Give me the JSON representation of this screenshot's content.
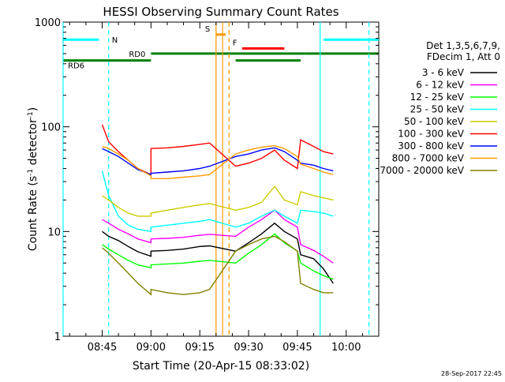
{
  "chart_data": {
    "type": "line",
    "title": "HESSI Observing Summary Count Rates",
    "xlabel": "Start Time (20-Apr-15 08:33:02)",
    "ylabel_main": "Count Rate (s",
    "ylabel_sup1": "-1",
    "ylabel_mid": " detector",
    "ylabel_sup2": "-1",
    "ylabel_end": ")",
    "yscale": "log",
    "ylim": [
      1,
      1000
    ],
    "xlim": [
      "08:33",
      "10:10"
    ],
    "x_ticks": [
      {
        "value": "08:45",
        "label": "08:45"
      },
      {
        "value": "09:00",
        "label": "09:00"
      },
      {
        "value": "09:15",
        "label": "09:15"
      },
      {
        "value": "09:30",
        "label": "09:30"
      },
      {
        "value": "09:45",
        "label": "09:45"
      },
      {
        "value": "10:00",
        "label": "10:00"
      }
    ],
    "y_ticks": [
      {
        "value": 1,
        "label": "1"
      },
      {
        "value": 10,
        "label": "10"
      },
      {
        "value": 100,
        "label": "100"
      },
      {
        "value": 1000,
        "label": "1000"
      }
    ],
    "legend_header": [
      "Det 1,3,5,6,7,9,",
      "FDecim 1, Att 0"
    ],
    "legend_position": "right",
    "series": [
      {
        "name": "3 - 6 keV",
        "color": "#000000",
        "x": [
          "08:45",
          "08:47",
          "08:50",
          "08:53",
          "08:56",
          "09:00",
          "09:00",
          "09:05",
          "09:10",
          "09:15",
          "09:18",
          "09:26",
          "09:30",
          "09:34",
          "09:38",
          "09:41",
          "09:45",
          "09:46",
          "09:50",
          "09:53",
          "09:56"
        ],
        "y": [
          10,
          9,
          8.2,
          7.2,
          6.4,
          5.8,
          6.5,
          6.6,
          6.8,
          7.2,
          7.3,
          6.5,
          7.8,
          9.5,
          12,
          10,
          8.5,
          6.0,
          5.5,
          4.4,
          3.2
        ]
      },
      {
        "name": "6 - 12 keV",
        "color": "#ff00ff",
        "x": [
          "08:45",
          "08:47",
          "08:50",
          "08:53",
          "08:56",
          "09:00",
          "09:00",
          "09:05",
          "09:10",
          "09:15",
          "09:18",
          "09:26",
          "09:30",
          "09:34",
          "09:38",
          "09:41",
          "09:45",
          "09:46",
          "09:50",
          "09:53",
          "09:56"
        ],
        "y": [
          13,
          12,
          10.5,
          9.5,
          8.5,
          7.8,
          8.5,
          8.6,
          8.8,
          9.2,
          9.4,
          9.0,
          11,
          13,
          16,
          13,
          11,
          7.5,
          6.6,
          5.8,
          5.0
        ]
      },
      {
        "name": "12 - 25 keV",
        "color": "#00ff00",
        "x": [
          "08:45",
          "08:47",
          "08:50",
          "08:53",
          "08:56",
          "09:00",
          "09:00",
          "09:05",
          "09:10",
          "09:15",
          "09:18",
          "09:26",
          "09:30",
          "09:34",
          "09:38",
          "09:41",
          "09:45",
          "09:46",
          "09:50",
          "09:53",
          "09:56"
        ],
        "y": [
          7.5,
          6.8,
          6.0,
          5.3,
          4.8,
          4.5,
          4.8,
          4.9,
          5.0,
          5.2,
          5.3,
          5.0,
          6.2,
          7.5,
          9.5,
          7.8,
          6.5,
          5.0,
          4.2,
          3.8,
          3.5
        ]
      },
      {
        "name": "25 - 50 keV",
        "color": "#00ffff",
        "x": [
          "08:45",
          "08:47",
          "08:50",
          "08:53",
          "08:56",
          "09:00",
          "09:00",
          "09:05",
          "09:10",
          "09:15",
          "09:18",
          "09:26",
          "09:30",
          "09:34",
          "09:38",
          "09:41",
          "09:45",
          "09:46",
          "09:50",
          "09:53",
          "09:56"
        ],
        "y": [
          38,
          22,
          14,
          11.5,
          10.5,
          10,
          11,
          11.5,
          12,
          12.5,
          13,
          11,
          12,
          14,
          16,
          14,
          12,
          16,
          15.5,
          15,
          14
        ]
      },
      {
        "name": "50 - 100 keV",
        "color": "#cccc00",
        "x": [
          "08:45",
          "08:47",
          "08:50",
          "08:53",
          "08:56",
          "09:00",
          "09:00",
          "09:05",
          "09:10",
          "09:15",
          "09:18",
          "09:26",
          "09:30",
          "09:34",
          "09:38",
          "09:41",
          "09:45",
          "09:46",
          "09:50",
          "09:53",
          "09:56"
        ],
        "y": [
          22,
          20,
          17,
          15,
          14,
          14,
          15,
          16,
          17,
          18,
          18.5,
          16,
          17,
          19,
          27,
          20,
          18,
          24,
          22,
          21,
          20
        ]
      },
      {
        "name": "100 - 300 keV",
        "color": "#ff0000",
        "x": [
          "08:45",
          "08:47",
          "08:50",
          "08:53",
          "08:56",
          "09:00",
          "09:00",
          "09:05",
          "09:10",
          "09:15",
          "09:18",
          "09:26",
          "09:30",
          "09:34",
          "09:38",
          "09:41",
          "09:45",
          "09:46",
          "09:50",
          "09:53",
          "09:56"
        ],
        "y": [
          105,
          72,
          58,
          48,
          40,
          35,
          62,
          63,
          65,
          68,
          70,
          42,
          45,
          50,
          60,
          48,
          40,
          75,
          65,
          58,
          55
        ]
      },
      {
        "name": "300 - 800 keV",
        "color": "#0000ff",
        "x": [
          "08:45",
          "08:47",
          "08:50",
          "08:53",
          "08:56",
          "09:00",
          "09:00",
          "09:05",
          "09:10",
          "09:15",
          "09:18",
          "09:26",
          "09:30",
          "09:34",
          "09:38",
          "09:41",
          "09:45",
          "09:46",
          "09:50",
          "09:53",
          "09:56"
        ],
        "y": [
          62,
          58,
          52,
          45,
          39,
          35,
          36,
          37,
          38,
          40,
          42,
          52,
          55,
          60,
          63,
          58,
          48,
          45,
          43,
          40,
          38
        ]
      },
      {
        "name": "800 - 7000 keV",
        "color": "#ff9900",
        "x": [
          "08:45",
          "08:47",
          "08:50",
          "08:53",
          "08:56",
          "09:00",
          "09:00",
          "09:05",
          "09:10",
          "09:15",
          "09:18",
          "09:26",
          "09:30",
          "09:34",
          "09:38",
          "09:41",
          "09:45",
          "09:46",
          "09:50",
          "09:53",
          "09:56"
        ],
        "y": [
          65,
          62,
          55,
          48,
          40,
          34,
          32,
          32,
          33,
          34,
          35,
          55,
          60,
          64,
          66,
          62,
          52,
          44,
          40,
          37,
          35
        ]
      },
      {
        "name": "7000 - 20000 keV",
        "color": "#808000",
        "x": [
          "08:45",
          "08:47",
          "08:50",
          "08:53",
          "08:56",
          "09:00",
          "09:00",
          "09:05",
          "09:10",
          "09:15",
          "09:18",
          "09:26",
          "09:30",
          "09:34",
          "09:38",
          "09:41",
          "09:45",
          "09:46",
          "09:50",
          "09:53",
          "09:56"
        ],
        "y": [
          7,
          6.2,
          5.0,
          4.0,
          3.2,
          2.5,
          2.8,
          2.6,
          2.5,
          2.6,
          2.8,
          6.5,
          7.5,
          8.5,
          9,
          8,
          6.5,
          3.2,
          2.8,
          2.6,
          2.6
        ]
      }
    ],
    "flag_bars": [
      {
        "label": "N",
        "color": "#00ffff",
        "y": 680,
        "segments": [
          [
            "08:33",
            "08:44"
          ],
          [
            "09:53",
            "10:10"
          ]
        ]
      },
      {
        "label": "RD0",
        "color": "#008000",
        "y": 500,
        "segments": [
          [
            "09:00",
            "09:47"
          ],
          [
            "09:47",
            "10:10"
          ]
        ]
      },
      {
        "label": "RD6",
        "color": "#008000",
        "y": 430,
        "segments": [
          [
            "08:33",
            "09:00"
          ],
          [
            "09:26",
            "09:46"
          ]
        ]
      },
      {
        "label": "F",
        "color": "#ff0000",
        "y": 560,
        "segments": [
          [
            "09:28",
            "09:41"
          ]
        ]
      },
      {
        "label": "S",
        "color": "#ff9900",
        "y": 760,
        "segments": [
          [
            "09:20",
            "09:23"
          ]
        ]
      }
    ],
    "vertical_lines": [
      {
        "x": "08:33",
        "color": "#00ffff",
        "style": "solid"
      },
      {
        "x": "08:47",
        "color": "#00ffff",
        "style": "dashed"
      },
      {
        "x": "09:20",
        "color": "#ff9900",
        "style": "solid"
      },
      {
        "x": "09:22",
        "color": "#ff9900",
        "style": "solid"
      },
      {
        "x": "09:24",
        "color": "#ff9900",
        "style": "dashed"
      },
      {
        "x": "09:52",
        "color": "#00ffff",
        "style": "solid"
      },
      {
        "x": "10:07",
        "color": "#00ffff",
        "style": "dashed"
      }
    ],
    "data_gaps": [
      [
        "09:19",
        "09:26"
      ]
    ]
  },
  "footer": {
    "timestamp": "28-Sep-2017 22:45"
  }
}
